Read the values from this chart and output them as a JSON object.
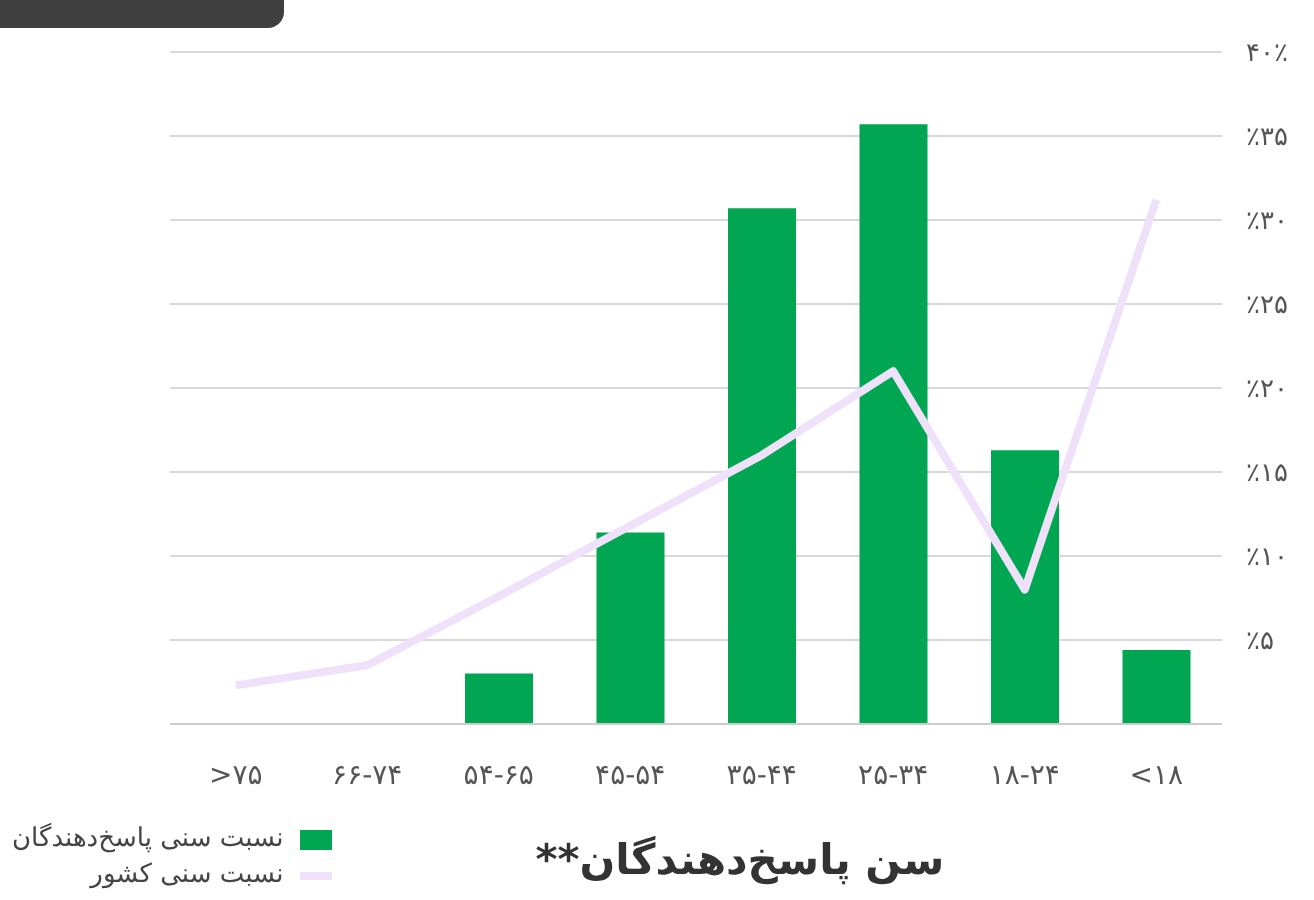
{
  "chart_data": {
    "type": "bar",
    "xlabel": "سن پاسخ‌دهندگان**",
    "categories": [
      ">۷۵",
      "۶۶-۷۴",
      "۵۴-۶۵",
      "۴۵-۵۴",
      "۳۵-۴۴",
      "۲۵-۳۴",
      "۱۸-۲۴",
      "<۱۸"
    ],
    "series": [
      {
        "name": "نسبت سنی پاسخ‌دهندگان",
        "color": "#00a651",
        "values": [
          0,
          0,
          3.0,
          11.4,
          30.7,
          35.7,
          16.3,
          4.4
        ]
      },
      {
        "name": "نسبت سنی کشور",
        "type": "line",
        "color": "#f0e1fa",
        "values": [
          2.3,
          3.5,
          7.6,
          11.8,
          16,
          21,
          8,
          31.2
        ]
      }
    ],
    "ylim": [
      0,
      40
    ],
    "yticks": [
      {
        "value": 5,
        "label": "٪۵"
      },
      {
        "value": 10,
        "label": "٪۱۰"
      },
      {
        "value": 15,
        "label": "٪۱۵"
      },
      {
        "value": 20,
        "label": "٪۲۰"
      },
      {
        "value": 25,
        "label": "٪۲۵"
      },
      {
        "value": 30,
        "label": "٪۳۰"
      },
      {
        "value": 35,
        "label": "٪۳۵"
      },
      {
        "value": 40,
        "label": "۴۰٪"
      }
    ],
    "grid": "y",
    "legend": "bottom left",
    "marker": "none"
  }
}
